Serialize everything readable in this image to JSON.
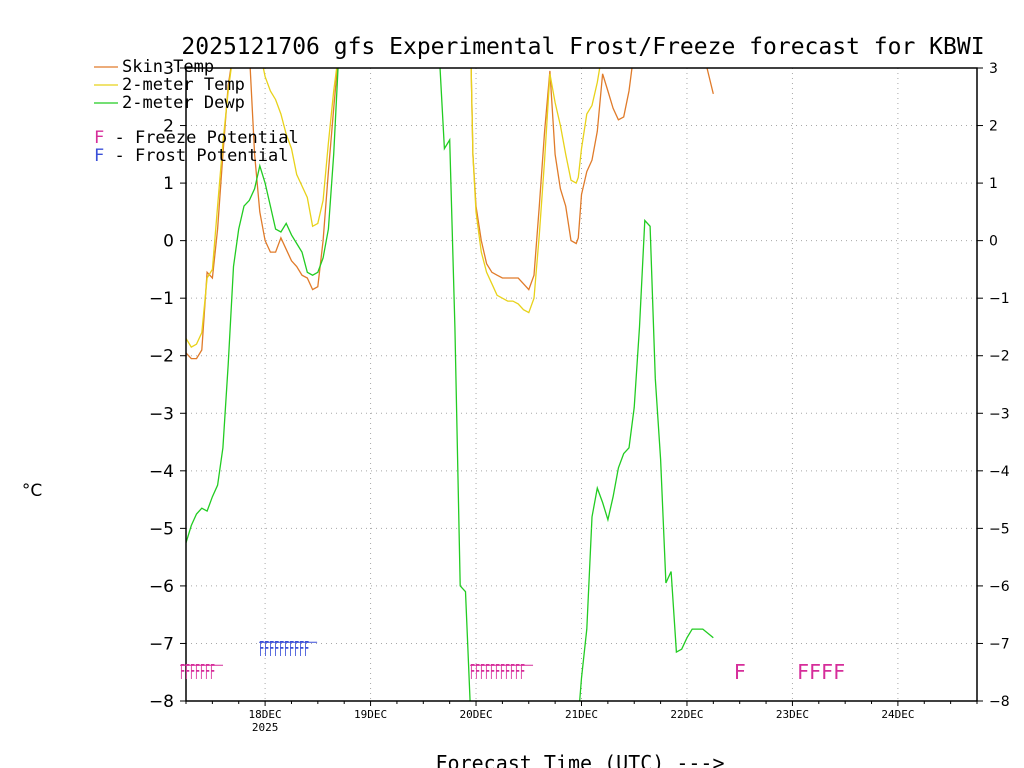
{
  "chart_data": {
    "type": "line",
    "title": "2025121706 gfs Experimental Frost/Freeze forecast for KBWI",
    "xlabel": "Forecast Time (UTC) --->",
    "ylabel": "°C",
    "ylim": [
      -8,
      3
    ],
    "xlim_day": [
      17.25,
      24.75
    ],
    "yticks": [
      "-8",
      "-7",
      "-6",
      "-5",
      "-4",
      "-3",
      "-2",
      "-1",
      "0",
      "1",
      "2",
      "3"
    ],
    "xticks": [
      {
        "day": 18,
        "label": "18DEC",
        "sub": "2025"
      },
      {
        "day": 19,
        "label": "19DEC",
        "sub": ""
      },
      {
        "day": 20,
        "label": "20DEC",
        "sub": ""
      },
      {
        "day": 21,
        "label": "21DEC",
        "sub": ""
      },
      {
        "day": 22,
        "label": "22DEC",
        "sub": ""
      },
      {
        "day": 23,
        "label": "23DEC",
        "sub": ""
      },
      {
        "day": 24,
        "label": "24DEC",
        "sub": ""
      }
    ],
    "colors": {
      "skin": "#e07b2a",
      "temp": "#e8d21a",
      "dewp": "#22cc22",
      "freeze": "#d62d9a",
      "frost": "#3a4fd8",
      "grid": "#a8a8a8",
      "axis": "#000000"
    },
    "legend": [
      {
        "name": "Skin Temp",
        "color": "#e07b2a"
      },
      {
        "name": "2-meter Temp",
        "color": "#e8d21a"
      },
      {
        "name": "2-meter Dewp",
        "color": "#22cc22"
      }
    ],
    "legend_potential": [
      {
        "letter": "F",
        "text": " - Freeze Potential",
        "color": "#d62d9a"
      },
      {
        "letter": "F",
        "text": " - Frost Potential",
        "color": "#3a4fd8"
      }
    ],
    "series": [
      {
        "name": "Skin Temp",
        "color": "#e07b2a",
        "points": [
          [
            17.25,
            -1.95
          ],
          [
            17.3,
            -2.05
          ],
          [
            17.35,
            -2.05
          ],
          [
            17.4,
            -1.9
          ],
          [
            17.45,
            -0.55
          ],
          [
            17.5,
            -0.65
          ],
          [
            17.55,
            0.2
          ],
          [
            17.6,
            1.5
          ],
          [
            17.65,
            2.7
          ],
          [
            17.7,
            3.3
          ],
          [
            17.85,
            3.3
          ],
          [
            17.9,
            1.5
          ],
          [
            17.95,
            0.5
          ],
          [
            18.0,
            0.0
          ],
          [
            18.05,
            -0.2
          ],
          [
            18.1,
            -0.2
          ],
          [
            18.15,
            0.05
          ],
          [
            18.2,
            -0.15
          ],
          [
            18.25,
            -0.35
          ],
          [
            18.3,
            -0.45
          ],
          [
            18.35,
            -0.6
          ],
          [
            18.4,
            -0.65
          ],
          [
            18.45,
            -0.85
          ],
          [
            18.5,
            -0.8
          ],
          [
            18.55,
            0.0
          ],
          [
            18.6,
            1.2
          ],
          [
            18.65,
            2.3
          ],
          [
            18.7,
            3.3
          ],
          [
            19.95,
            3.3
          ],
          [
            19.97,
            1.5
          ],
          [
            20.0,
            0.6
          ],
          [
            20.05,
            0.0
          ],
          [
            20.1,
            -0.4
          ],
          [
            20.15,
            -0.55
          ],
          [
            20.2,
            -0.6
          ],
          [
            20.25,
            -0.65
          ],
          [
            20.3,
            -0.65
          ],
          [
            20.35,
            -0.65
          ],
          [
            20.4,
            -0.65
          ],
          [
            20.45,
            -0.75
          ],
          [
            20.5,
            -0.85
          ],
          [
            20.55,
            -0.6
          ],
          [
            20.6,
            0.6
          ],
          [
            20.65,
            1.9
          ],
          [
            20.7,
            2.95
          ],
          [
            20.75,
            1.5
          ],
          [
            20.8,
            0.9
          ],
          [
            20.85,
            0.6
          ],
          [
            20.9,
            0.0
          ],
          [
            20.95,
            -0.05
          ],
          [
            20.97,
            0.05
          ],
          [
            21.0,
            0.8
          ],
          [
            21.05,
            1.2
          ],
          [
            21.1,
            1.4
          ],
          [
            21.15,
            1.9
          ],
          [
            21.2,
            2.9
          ],
          [
            21.25,
            2.6
          ],
          [
            21.3,
            2.3
          ],
          [
            21.35,
            2.1
          ],
          [
            21.4,
            2.15
          ],
          [
            21.45,
            2.6
          ],
          [
            21.5,
            3.3
          ],
          [
            22.15,
            3.3
          ],
          [
            22.25,
            2.55
          ]
        ]
      },
      {
        "name": "2-meter Temp",
        "color": "#e8d21a",
        "points": [
          [
            17.25,
            -1.7
          ],
          [
            17.3,
            -1.85
          ],
          [
            17.35,
            -1.8
          ],
          [
            17.4,
            -1.6
          ],
          [
            17.45,
            -0.65
          ],
          [
            17.5,
            -0.5
          ],
          [
            17.55,
            0.6
          ],
          [
            17.6,
            1.7
          ],
          [
            17.65,
            2.6
          ],
          [
            17.7,
            3.3
          ],
          [
            17.95,
            3.3
          ],
          [
            18.0,
            2.85
          ],
          [
            18.05,
            2.6
          ],
          [
            18.1,
            2.45
          ],
          [
            18.15,
            2.2
          ],
          [
            18.2,
            1.85
          ],
          [
            18.25,
            1.6
          ],
          [
            18.3,
            1.15
          ],
          [
            18.35,
            0.95
          ],
          [
            18.4,
            0.75
          ],
          [
            18.45,
            0.25
          ],
          [
            18.5,
            0.3
          ],
          [
            18.55,
            0.7
          ],
          [
            18.6,
            1.7
          ],
          [
            18.65,
            2.6
          ],
          [
            18.7,
            3.3
          ],
          [
            19.95,
            3.3
          ],
          [
            19.97,
            1.5
          ],
          [
            20.0,
            0.5
          ],
          [
            20.05,
            -0.2
          ],
          [
            20.1,
            -0.55
          ],
          [
            20.15,
            -0.75
          ],
          [
            20.2,
            -0.95
          ],
          [
            20.25,
            -1.0
          ],
          [
            20.3,
            -1.05
          ],
          [
            20.35,
            -1.05
          ],
          [
            20.4,
            -1.1
          ],
          [
            20.45,
            -1.2
          ],
          [
            20.5,
            -1.25
          ],
          [
            20.55,
            -1.0
          ],
          [
            20.6,
            0.1
          ],
          [
            20.65,
            1.4
          ],
          [
            20.7,
            2.9
          ],
          [
            20.75,
            2.4
          ],
          [
            20.8,
            2.0
          ],
          [
            20.85,
            1.5
          ],
          [
            20.9,
            1.05
          ],
          [
            20.95,
            1.0
          ],
          [
            20.97,
            1.1
          ],
          [
            21.0,
            1.6
          ],
          [
            21.05,
            2.2
          ],
          [
            21.1,
            2.35
          ],
          [
            21.15,
            2.75
          ],
          [
            21.2,
            3.3
          ]
        ]
      },
      {
        "name": "2-meter Dewp",
        "color": "#22cc22",
        "points": [
          [
            17.25,
            -5.25
          ],
          [
            17.3,
            -4.95
          ],
          [
            17.35,
            -4.75
          ],
          [
            17.4,
            -4.65
          ],
          [
            17.45,
            -4.7
          ],
          [
            17.5,
            -4.45
          ],
          [
            17.55,
            -4.25
          ],
          [
            17.6,
            -3.6
          ],
          [
            17.65,
            -2.15
          ],
          [
            17.7,
            -0.45
          ],
          [
            17.75,
            0.2
          ],
          [
            17.8,
            0.6
          ],
          [
            17.85,
            0.7
          ],
          [
            17.9,
            0.9
          ],
          [
            17.95,
            1.3
          ],
          [
            18.0,
            1.0
          ],
          [
            18.05,
            0.6
          ],
          [
            18.1,
            0.2
          ],
          [
            18.15,
            0.15
          ],
          [
            18.2,
            0.3
          ],
          [
            18.25,
            0.1
          ],
          [
            18.3,
            -0.05
          ],
          [
            18.35,
            -0.2
          ],
          [
            18.4,
            -0.55
          ],
          [
            18.45,
            -0.6
          ],
          [
            18.5,
            -0.55
          ],
          [
            18.55,
            -0.3
          ],
          [
            18.6,
            0.2
          ],
          [
            18.65,
            1.5
          ],
          [
            18.7,
            3.3
          ],
          [
            19.65,
            3.3
          ],
          [
            19.7,
            1.6
          ],
          [
            19.75,
            1.75
          ],
          [
            19.8,
            -1.5
          ],
          [
            19.85,
            -6.0
          ],
          [
            19.9,
            -6.1
          ],
          [
            19.95,
            -8.3
          ],
          [
            20.97,
            -8.3
          ],
          [
            21.0,
            -7.6
          ],
          [
            21.05,
            -6.75
          ],
          [
            21.1,
            -4.8
          ],
          [
            21.15,
            -4.3
          ],
          [
            21.2,
            -4.55
          ],
          [
            21.25,
            -4.85
          ],
          [
            21.3,
            -4.45
          ],
          [
            21.35,
            -3.95
          ],
          [
            21.4,
            -3.7
          ],
          [
            21.45,
            -3.6
          ],
          [
            21.5,
            -2.9
          ],
          [
            21.55,
            -1.5
          ],
          [
            21.6,
            0.35
          ],
          [
            21.65,
            0.25
          ],
          [
            21.7,
            -2.4
          ],
          [
            21.75,
            -3.8
          ],
          [
            21.8,
            -5.95
          ],
          [
            21.85,
            -5.75
          ],
          [
            21.9,
            -7.15
          ],
          [
            21.95,
            -7.1
          ],
          [
            22.0,
            -6.9
          ],
          [
            22.05,
            -6.75
          ],
          [
            22.1,
            -6.75
          ],
          [
            22.15,
            -6.75
          ],
          [
            22.25,
            -6.9
          ]
        ]
      }
    ],
    "flags": [
      {
        "text": "FFFFFFF",
        "color": "#d62d9a",
        "x": 17.25,
        "y": -7.5
      },
      {
        "text": "FFFFFFFFFF",
        "color": "#3a4fd8",
        "x": 18.0,
        "y": -7.1
      },
      {
        "text": "FFFFFFFFFFF",
        "color": "#d62d9a",
        "x": 20.0,
        "y": -7.5
      },
      {
        "text": "F",
        "color": "#d62d9a",
        "x": 22.5,
        "y": -7.5
      },
      {
        "text": "FFFF",
        "color": "#d62d9a",
        "x": 23.1,
        "y": -7.5
      }
    ]
  }
}
